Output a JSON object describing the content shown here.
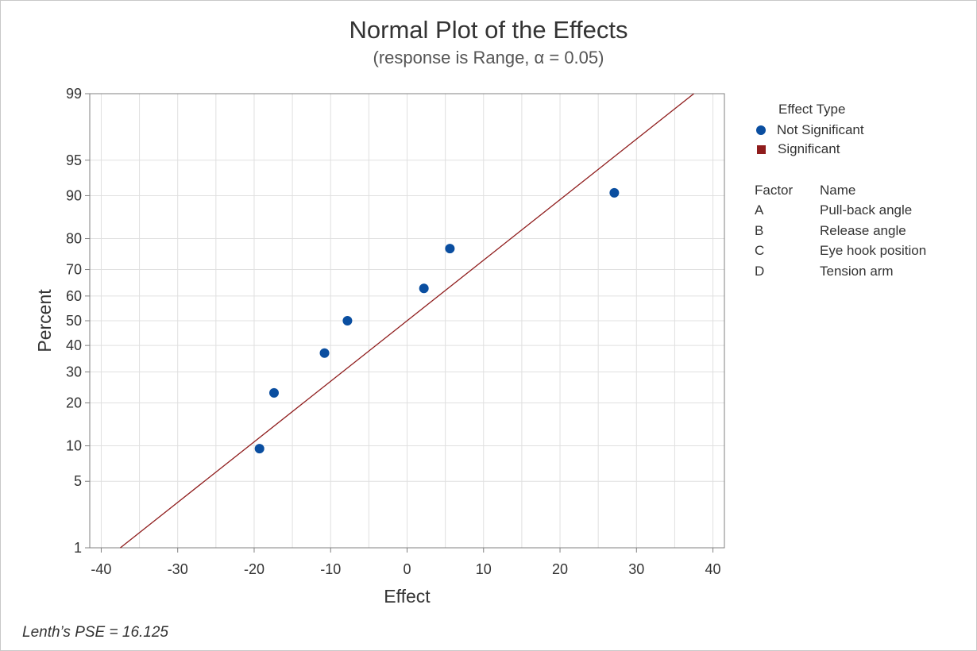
{
  "chart_data": {
    "type": "scatter",
    "title": "Normal Plot of the Effects",
    "subtitle": "(response is Range, α = 0.05)",
    "xlabel": "Effect",
    "ylabel": "Percent",
    "xlim": [
      -41.5,
      41.5
    ],
    "ylim": [
      1,
      99
    ],
    "yscale": "normal-probability",
    "x_ticks": [
      -40,
      -30,
      -20,
      -10,
      0,
      10,
      20,
      30,
      40
    ],
    "y_ticks": [
      1,
      5,
      10,
      20,
      30,
      40,
      50,
      60,
      70,
      80,
      90,
      95,
      99
    ],
    "grid": true,
    "legend_position": "right",
    "colors": {
      "not_significant": "#0a4ea0",
      "significant": "#8f1c1c",
      "line": "#8f1c1c",
      "grid": "#e0e0e0"
    },
    "series": [
      {
        "name": "Not Significant",
        "marker": "circle",
        "points": [
          {
            "x": -19.3,
            "y": 9.5
          },
          {
            "x": -17.4,
            "y": 23
          },
          {
            "x": -10.8,
            "y": 37
          },
          {
            "x": -7.8,
            "y": 50
          },
          {
            "x": 2.2,
            "y": 63
          },
          {
            "x": 5.6,
            "y": 77
          },
          {
            "x": 27.1,
            "y": 90.5
          }
        ]
      }
    ],
    "reference_line": {
      "points": [
        {
          "x": -37.5,
          "y": 1
        },
        {
          "x": 37.5,
          "y": 99
        }
      ]
    }
  },
  "legend": {
    "title": "Effect Type",
    "items": [
      {
        "label": "Not Significant",
        "shape": "circle"
      },
      {
        "label": "Significant",
        "shape": "square"
      }
    ]
  },
  "factors": {
    "header_factor": "Factor",
    "header_name": "Name",
    "rows": [
      {
        "factor": "A",
        "name": "Pull-back angle"
      },
      {
        "factor": "B",
        "name": "Release angle"
      },
      {
        "factor": "C",
        "name": "Eye hook position"
      },
      {
        "factor": "D",
        "name": "Tension arm"
      }
    ]
  },
  "footnote": "Lenth’s PSE = 16.125"
}
